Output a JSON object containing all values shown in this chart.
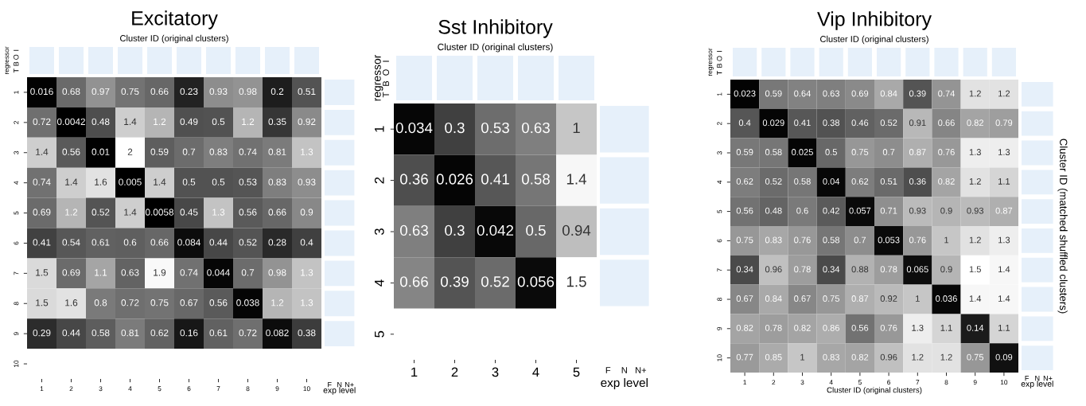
{
  "chart_data": [
    {
      "type": "heatmap",
      "title": "Excitatory",
      "x2label": "Cluster ID (original clusters)",
      "categories": [
        "1",
        "2",
        "3",
        "4",
        "5",
        "6",
        "7",
        "8",
        "9",
        "10"
      ],
      "y_categories": [
        "1",
        "2",
        "3",
        "4",
        "5",
        "6",
        "7",
        "8",
        "9",
        "10"
      ],
      "cells": [
        [
          0.016,
          0.68,
          0.97,
          0.75,
          0.66,
          0.23,
          0.93,
          0.98,
          0.2,
          0.51
        ],
        [
          0.72,
          0.0042,
          0.48,
          1.4,
          1.2,
          0.49,
          0.5,
          1.2,
          0.35,
          0.92
        ],
        [
          1.4,
          0.56,
          0.01,
          2,
          0.59,
          0.7,
          0.83,
          0.74,
          0.81,
          1.3
        ],
        [
          0.74,
          1.4,
          1.6,
          0.005,
          1.4,
          0.5,
          0.5,
          0.53,
          0.83,
          0.93
        ],
        [
          0.69,
          1.2,
          0.52,
          1.4,
          0.0058,
          0.45,
          1.3,
          0.56,
          0.66,
          0.9
        ],
        [
          0.41,
          0.54,
          0.61,
          0.6,
          0.66,
          0.084,
          0.44,
          0.52,
          0.28,
          0.4
        ],
        [
          1.5,
          0.69,
          1.1,
          0.63,
          1.9,
          0.74,
          0.044,
          0.7,
          0.98,
          1.3
        ],
        [
          1.5,
          1.6,
          0.8,
          0.72,
          0.75,
          0.67,
          0.56,
          0.038,
          1.2,
          1.3
        ],
        [
          0.29,
          0.44,
          0.58,
          0.81,
          0.62,
          0.16,
          0.61,
          0.72,
          0.082,
          0.38
        ],
        [
          null,
          null,
          null,
          null,
          null,
          null,
          null,
          null,
          null,
          null
        ]
      ],
      "data_labels": true,
      "annotations": [
        "regressor",
        "I",
        "O",
        "B",
        "T",
        "F",
        "N",
        "N+",
        "exp level"
      ]
    },
    {
      "type": "heatmap",
      "title": "Sst Inhibitory",
      "x2label": "Cluster ID (original clusters)",
      "categories": [
        "1",
        "2",
        "3",
        "4",
        "5"
      ],
      "y_categories": [
        "1",
        "2",
        "3",
        "4",
        "5"
      ],
      "cells": [
        [
          0.034,
          0.3,
          0.53,
          0.63,
          1
        ],
        [
          0.36,
          0.026,
          0.41,
          0.58,
          1.4
        ],
        [
          0.63,
          0.3,
          0.042,
          0.5,
          0.94
        ],
        [
          0.66,
          0.39,
          0.52,
          0.056,
          1.5
        ],
        [
          null,
          null,
          null,
          null,
          null
        ]
      ],
      "data_labels": true,
      "annotations": [
        "regressor",
        "I",
        "O",
        "B",
        "T",
        "F",
        "N",
        "N+",
        "exp level"
      ]
    },
    {
      "type": "heatmap",
      "title": "Vip Inhibitory",
      "x2label": "Cluster ID (original clusters)",
      "xlabel": "Cluster ID (original clusters)",
      "ylabel": "Cluster ID (matched shuffled clusters)",
      "categories": [
        "1",
        "2",
        "3",
        "4",
        "5",
        "6",
        "7",
        "8",
        "9",
        "10"
      ],
      "y_categories": [
        "1",
        "2",
        "3",
        "4",
        "5",
        "6",
        "7",
        "8",
        "9",
        "10"
      ],
      "cells": [
        [
          0.023,
          0.59,
          0.64,
          0.63,
          0.69,
          0.84,
          0.39,
          0.74,
          1.2,
          1.2
        ],
        [
          0.4,
          0.029,
          0.41,
          0.38,
          0.46,
          0.52,
          0.91,
          0.66,
          0.82,
          0.79
        ],
        [
          0.59,
          0.58,
          0.025,
          0.5,
          0.75,
          0.7,
          0.87,
          0.76,
          1.3,
          1.3
        ],
        [
          0.62,
          0.52,
          0.58,
          0.04,
          0.62,
          0.51,
          0.36,
          0.82,
          1.2,
          1.1
        ],
        [
          0.56,
          0.48,
          0.6,
          0.42,
          0.057,
          0.71,
          0.93,
          0.9,
          0.93,
          0.87
        ],
        [
          0.75,
          0.83,
          0.76,
          0.58,
          0.7,
          0.053,
          0.76,
          1,
          1.2,
          1.3
        ],
        [
          0.34,
          0.96,
          0.78,
          0.34,
          0.88,
          0.78,
          0.065,
          0.9,
          1.5,
          1.4
        ],
        [
          0.67,
          0.84,
          0.67,
          0.75,
          0.87,
          0.92,
          1,
          0.036,
          1.4,
          1.4
        ],
        [
          0.82,
          0.78,
          0.82,
          0.86,
          0.56,
          0.76,
          1.3,
          1.1,
          0.14,
          1.1
        ],
        [
          0.77,
          0.85,
          1,
          0.83,
          0.82,
          0.96,
          1.2,
          1.2,
          0.75,
          0.09
        ]
      ],
      "data_labels": true,
      "annotations": [
        "regressor",
        "I",
        "O",
        "B",
        "T",
        "F",
        "N",
        "N+",
        "exp level"
      ]
    }
  ]
}
